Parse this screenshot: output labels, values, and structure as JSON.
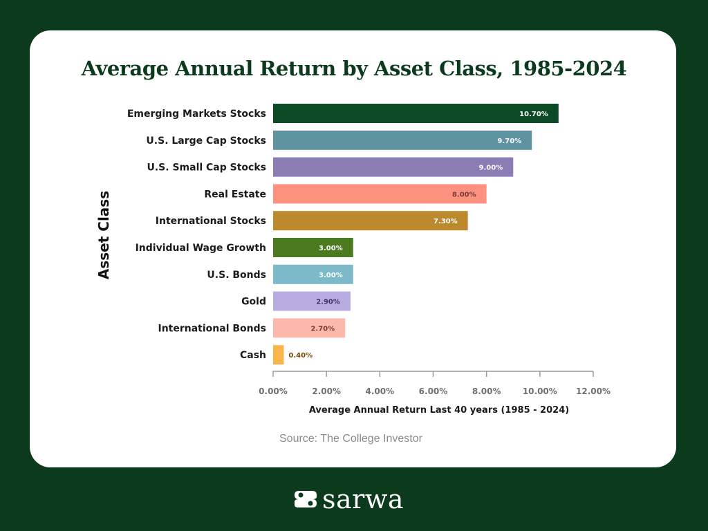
{
  "chart_data": {
    "type": "bar",
    "orientation": "horizontal",
    "title": "Average Annual Return by Asset Class, 1985-2024",
    "xlabel": "Average Annual Return Last 40 years (1985 - 2024)",
    "ylabel": "Asset Class",
    "xlim": [
      0,
      12
    ],
    "xticks": [
      0,
      2,
      4,
      6,
      8,
      10,
      12
    ],
    "xtick_labels": [
      "0.00%",
      "2.00%",
      "4.00%",
      "6.00%",
      "8.00%",
      "10.00%",
      "12.00%"
    ],
    "grid": false,
    "categories": [
      "Emerging Markets Stocks",
      "U.S. Large Cap Stocks",
      "U.S. Small Cap Stocks",
      "Real Estate",
      "International Stocks",
      "Individual Wage Growth",
      "U.S. Bonds",
      "Gold",
      "International Bonds",
      "Cash"
    ],
    "values": [
      10.7,
      9.7,
      9.0,
      8.0,
      7.3,
      3.0,
      3.0,
      2.9,
      2.7,
      0.4
    ],
    "value_labels": [
      "10.70%",
      "9.70%",
      "9.00%",
      "8.00%",
      "7.30%",
      "3.00%",
      "3.00%",
      "2.90%",
      "2.70%",
      "0.40%"
    ],
    "colors": [
      "#0b4a24",
      "#5e939f",
      "#8b7db3",
      "#fc9180",
      "#bc8a2c",
      "#4c7a20",
      "#7cb9c9",
      "#b9ace2",
      "#fcb8ab",
      "#f7b54a"
    ],
    "label_colors": [
      "#ffffff",
      "#ffffff",
      "#ffffff",
      "#7a3a2e",
      "#ffffff",
      "#ffffff",
      "#ffffff",
      "#3d3560",
      "#7a3a2e",
      "#7a4a00"
    ]
  },
  "source": "Source: The College Investor",
  "logo": {
    "text": "sarwa",
    "icon": "sarwa-logo-icon"
  }
}
